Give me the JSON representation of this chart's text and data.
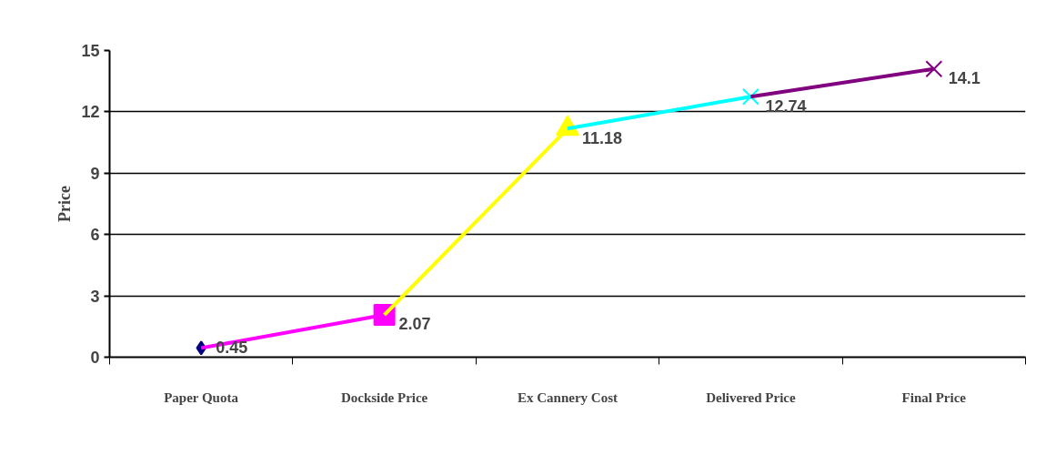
{
  "chart_data": {
    "type": "line",
    "ylabel": "Price",
    "categories": [
      "Paper Quota",
      "Dockside Price",
      "Ex Cannery Cost",
      "Delivered Price",
      "Final Price"
    ],
    "series": [
      {
        "values": [
          0.45,
          2.07,
          null,
          null,
          null
        ],
        "color": "#ff00ff",
        "marker": "none"
      },
      {
        "values": [
          null,
          2.07,
          11.18,
          null,
          null
        ],
        "color": "#ffff00",
        "marker": "none"
      },
      {
        "values": [
          null,
          null,
          11.18,
          12.74,
          null
        ],
        "color": "#00ffff",
        "marker": "none"
      },
      {
        "values": [
          null,
          null,
          null,
          12.74,
          14.1
        ],
        "color": "#800080",
        "marker": "none"
      },
      {
        "type": "scatter",
        "values": [
          0.45,
          null,
          null,
          null,
          null
        ],
        "value_labels": [
          "0.45",
          null,
          null,
          null,
          null
        ],
        "color": "#000080",
        "marker": "diamond"
      },
      {
        "type": "scatter",
        "values": [
          null,
          2.07,
          null,
          null,
          null
        ],
        "value_labels": [
          null,
          "2.07",
          null,
          null,
          null
        ],
        "color": "#ff00ff",
        "marker": "square"
      },
      {
        "type": "scatter",
        "values": [
          null,
          null,
          11.18,
          null,
          null
        ],
        "value_labels": [
          null,
          null,
          "11.18",
          null,
          null
        ],
        "color": "#ffff00",
        "marker": "triangle"
      },
      {
        "type": "scatter",
        "values": [
          null,
          null,
          null,
          12.74,
          null
        ],
        "value_labels": [
          null,
          null,
          null,
          "12.74",
          null
        ],
        "color": "#00ffff",
        "marker": "cross"
      },
      {
        "type": "scatter",
        "values": [
          null,
          null,
          null,
          null,
          14.1
        ],
        "value_labels": [
          null,
          null,
          null,
          null,
          "14.1"
        ],
        "color": "#800080",
        "marker": "cross"
      }
    ],
    "ylim": [
      0,
      15
    ],
    "yticks": [
      0,
      3,
      6,
      9,
      12,
      15
    ],
    "grid": "y"
  }
}
